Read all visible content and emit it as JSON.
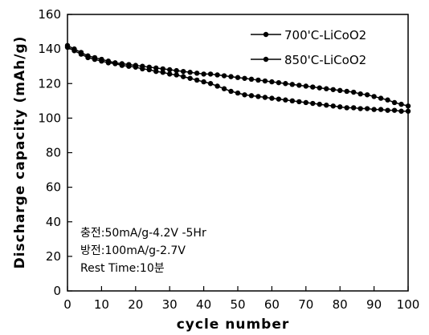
{
  "chart_data": {
    "type": "line",
    "xlabel": "cycle number",
    "ylabel": "Discharge capacity (mAh/g)",
    "xlim": [
      0,
      100
    ],
    "ylim": [
      0,
      160
    ],
    "xticks": [
      0,
      10,
      20,
      30,
      40,
      50,
      60,
      70,
      80,
      90,
      100
    ],
    "yticks": [
      0,
      20,
      40,
      60,
      80,
      100,
      120,
      140,
      160
    ],
    "grid": false,
    "legend_position": "top-right",
    "annotations": [
      "충전:50mA/g-4.2V -5Hr",
      "방전:100mA/g-2.7V",
      "Rest Time:10분"
    ],
    "x": [
      0,
      2,
      4,
      6,
      8,
      10,
      12,
      14,
      16,
      18,
      20,
      22,
      24,
      26,
      28,
      30,
      32,
      34,
      36,
      38,
      40,
      42,
      44,
      46,
      48,
      50,
      52,
      54,
      56,
      58,
      60,
      62,
      64,
      66,
      68,
      70,
      72,
      74,
      76,
      78,
      80,
      82,
      84,
      86,
      88,
      90,
      92,
      94,
      96,
      98,
      100
    ],
    "series": [
      {
        "name": "700'C-LiCoO2",
        "values": [
          142,
          140,
          138,
          136,
          135,
          134,
          133,
          132,
          131.5,
          131,
          130.5,
          130,
          129.5,
          129,
          128.5,
          128,
          127.5,
          127,
          126.5,
          126,
          125.5,
          125.5,
          125,
          124.5,
          124,
          123.5,
          123,
          122.5,
          122,
          121.5,
          121,
          120.5,
          120,
          119.5,
          119,
          118.5,
          118,
          117.5,
          117,
          116.5,
          116,
          115.5,
          115,
          114,
          113.5,
          112.5,
          111.5,
          110.5,
          109,
          108,
          107
        ]
      },
      {
        "name": "850'C-LiCoO2",
        "values": [
          141,
          139,
          137,
          135,
          134,
          133,
          132,
          131.5,
          130.5,
          130,
          129.5,
          128.5,
          128,
          127,
          126.5,
          125.5,
          125,
          124,
          123,
          122,
          121,
          120,
          118.5,
          117,
          115.5,
          114.5,
          113.5,
          113,
          112.5,
          112,
          111.5,
          111,
          110.5,
          110,
          109.5,
          109,
          108.5,
          108,
          107.5,
          107,
          106.5,
          106,
          106,
          105.5,
          105.5,
          105,
          105,
          104.5,
          104.5,
          104,
          104
        ]
      }
    ],
    "colors": {
      "line": "#000000",
      "marker": "#000000"
    }
  }
}
